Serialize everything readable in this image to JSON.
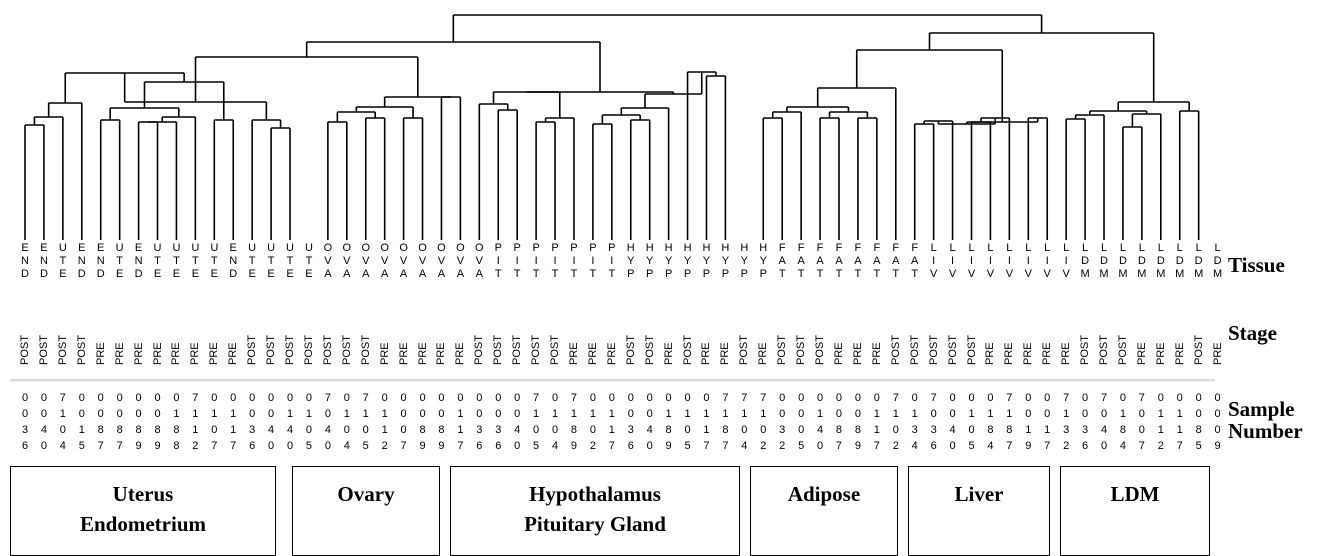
{
  "leaves": [
    {
      "tissue": "END",
      "stage": "POST",
      "sample": "0036"
    },
    {
      "tissue": "END",
      "stage": "POST",
      "sample": "0040"
    },
    {
      "tissue": "UTE",
      "stage": "POST",
      "sample": "7104"
    },
    {
      "tissue": "END",
      "stage": "POST",
      "sample": "0015"
    },
    {
      "tissue": "END",
      "stage": "PRE",
      "sample": "0087"
    },
    {
      "tissue": "UTE",
      "stage": "PRE",
      "sample": "0087"
    },
    {
      "tissue": "END",
      "stage": "PRE",
      "sample": "0089"
    },
    {
      "tissue": "UTE",
      "stage": "PRE",
      "sample": "0089"
    },
    {
      "tissue": "UTE",
      "stage": "PRE",
      "sample": "0188"
    },
    {
      "tissue": "UTE",
      "stage": "PRE",
      "sample": "7112"
    },
    {
      "tissue": "UTE",
      "stage": "PRE",
      "sample": "0107"
    },
    {
      "tissue": "END",
      "stage": "PRE",
      "sample": "0117"
    },
    {
      "tissue": "UTE",
      "stage": "POST",
      "sample": "0036"
    },
    {
      "tissue": "UTE",
      "stage": "POST",
      "sample": "0040"
    },
    {
      "tissue": "UTE",
      "stage": "POST",
      "sample": "0140"
    },
    {
      "tissue": "UTE",
      "stage": "POST",
      "sample": "0105"
    },
    {
      "tissue": "OVA",
      "stage": "POST",
      "sample": "7040"
    },
    {
      "tissue": "OVA",
      "stage": "POST",
      "sample": "0104"
    },
    {
      "tissue": "OVA",
      "stage": "POST",
      "sample": "7105"
    },
    {
      "tissue": "OVA",
      "stage": "PRE",
      "sample": "0112"
    },
    {
      "tissue": "OVA",
      "stage": "PRE",
      "sample": "0007"
    },
    {
      "tissue": "OVA",
      "stage": "PRE",
      "sample": "0089"
    },
    {
      "tissue": "OVA",
      "stage": "PRE",
      "sample": "0089"
    },
    {
      "tissue": "OVA",
      "stage": "PRE",
      "sample": "0117"
    },
    {
      "tissue": "OVA",
      "stage": "POST",
      "sample": "0036"
    },
    {
      "tissue": "PIT",
      "stage": "POST",
      "sample": "0036"
    },
    {
      "tissue": "PIT",
      "stage": "POST",
      "sample": "0040"
    },
    {
      "tissue": "PIT",
      "stage": "POST",
      "sample": "7105"
    },
    {
      "tissue": "PIT",
      "stage": "POST",
      "sample": "0104"
    },
    {
      "tissue": "PIT",
      "stage": "PRE",
      "sample": "7189"
    },
    {
      "tissue": "PIT",
      "stage": "PRE",
      "sample": "0102"
    },
    {
      "tissue": "PIT",
      "stage": "PRE",
      "sample": "0117"
    },
    {
      "tissue": "HYP",
      "stage": "POST",
      "sample": "0036"
    },
    {
      "tissue": "HYP",
      "stage": "POST",
      "sample": "0040"
    },
    {
      "tissue": "HYP",
      "stage": "PRE",
      "sample": "0189"
    },
    {
      "tissue": "HYP",
      "stage": "POST",
      "sample": "0105"
    },
    {
      "tissue": "HYP",
      "stage": "PRE",
      "sample": "0117"
    },
    {
      "tissue": "HYP",
      "stage": "PRE",
      "sample": "7187"
    },
    {
      "tissue": "HYP",
      "stage": "POST",
      "sample": "7104"
    },
    {
      "tissue": "HYP",
      "stage": "PRE",
      "sample": "7102"
    },
    {
      "tissue": "FAT",
      "stage": "POST",
      "sample": "0032"
    },
    {
      "tissue": "FAT",
      "stage": "POST",
      "sample": "0005"
    },
    {
      "tissue": "FAT",
      "stage": "POST",
      "sample": "0140"
    },
    {
      "tissue": "FAT",
      "stage": "PRE",
      "sample": "0087"
    },
    {
      "tissue": "FAT",
      "stage": "PRE",
      "sample": "0089"
    },
    {
      "tissue": "FAT",
      "stage": "PRE",
      "sample": "0117"
    },
    {
      "tissue": "FAT",
      "stage": "POST",
      "sample": "7102"
    },
    {
      "tissue": "FAT",
      "stage": "POST",
      "sample": "0134"
    },
    {
      "tissue": "LIV",
      "stage": "POST",
      "sample": "7036"
    },
    {
      "tissue": "LIV",
      "stage": "POST",
      "sample": "0040"
    },
    {
      "tissue": "LIV",
      "stage": "POST",
      "sample": "0105"
    },
    {
      "tissue": "LIV",
      "stage": "PRE",
      "sample": "0184"
    },
    {
      "tissue": "LIV",
      "stage": "PRE",
      "sample": "7187"
    },
    {
      "tissue": "LIV",
      "stage": "PRE",
      "sample": "0019"
    },
    {
      "tissue": "LIV",
      "stage": "PRE",
      "sample": "0017"
    },
    {
      "tissue": "LIV",
      "stage": "PRE",
      "sample": "7132"
    },
    {
      "tissue": "LDM",
      "stage": "POST",
      "sample": "0036"
    },
    {
      "tissue": "LDM",
      "stage": "POST",
      "sample": "7040"
    },
    {
      "tissue": "LDM",
      "stage": "POST",
      "sample": "0184"
    },
    {
      "tissue": "LDM",
      "stage": "PRE",
      "sample": "7007"
    },
    {
      "tissue": "LDM",
      "stage": "PRE",
      "sample": "0112"
    },
    {
      "tissue": "LDM",
      "stage": "PRE",
      "sample": "0117"
    },
    {
      "tissue": "LDM",
      "stage": "POST",
      "sample": "0085"
    },
    {
      "tissue": "LDM",
      "stage": "PRE",
      "sample": "0009"
    }
  ],
  "rowlabels": {
    "tissue": "Tissue",
    "stage": "Stage",
    "sample1": "Sample",
    "sample2": "Number"
  },
  "groups": [
    {
      "line1": "Uterus",
      "line2": "Endometrium",
      "first": 0,
      "last": 15
    },
    {
      "line1": "Ovary",
      "line2": "",
      "first": 16,
      "last": 24
    },
    {
      "line1": "Hypothalamus",
      "line2": "Pituitary Gland",
      "first": 25,
      "last": 39
    },
    {
      "line1": "Adipose",
      "line2": "",
      "first": 40,
      "last": 47
    },
    {
      "line1": "Liver",
      "line2": "",
      "first": 48,
      "last": 55
    },
    {
      "line1": "LDM",
      "line2": "",
      "first": 56,
      "last": 63
    }
  ],
  "colors": {
    "line": "#000000"
  }
}
